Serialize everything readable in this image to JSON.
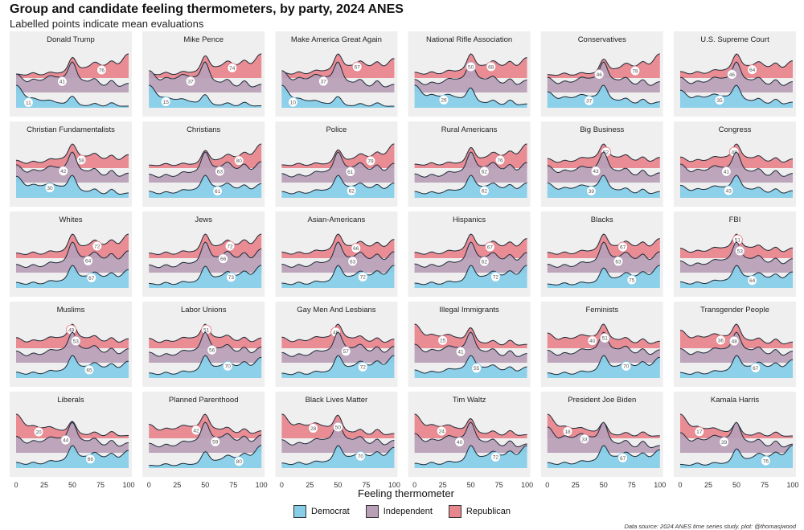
{
  "title": "Group and candidate feeling thermometers, by party, 2024 ANES",
  "subtitle": "Labelled points indicate mean evaluations",
  "source": "Data source: 2024 ANES time series study. plot: @thomasjwood",
  "colors": {
    "Democrat": "#87cde8",
    "Independent": "#b9a0b8",
    "Republican": "#e8868e",
    "panel_bg": "#efefef",
    "stroke": "#1c2b38"
  },
  "chart_data": {
    "type": "ridgeline",
    "xlabel": "Feeling thermometer",
    "xlim": [
      0,
      100
    ],
    "xticks": [
      "0",
      "25",
      "50",
      "75",
      "100"
    ],
    "series": [
      "Democrat",
      "Independent",
      "Republican"
    ],
    "legend": [
      {
        "name": "Democrat"
      },
      {
        "name": "Independent"
      },
      {
        "name": "Republican"
      }
    ],
    "panels": [
      {
        "name": "Donald Trump",
        "means": {
          "Democrat": 11,
          "Independent": 41,
          "Republican": 76
        }
      },
      {
        "name": "Mike Pence",
        "means": {
          "Democrat": 15,
          "Independent": 37,
          "Republican": 74
        }
      },
      {
        "name": "Make America Great Again",
        "means": {
          "Democrat": 10,
          "Independent": 37,
          "Republican": 67
        }
      },
      {
        "name": "National Rifle Association",
        "means": {
          "Democrat": 26,
          "Independent": 50,
          "Republican": 68
        }
      },
      {
        "name": "Conservatives",
        "means": {
          "Democrat": 37,
          "Independent": 46,
          "Republican": 78
        }
      },
      {
        "name": "U.S. Supreme Court",
        "means": {
          "Democrat": 35,
          "Independent": 46,
          "Republican": 64
        }
      },
      {
        "name": "Christian Fundamentalists",
        "means": {
          "Democrat": 30,
          "Independent": 42,
          "Republican": 58
        }
      },
      {
        "name": "Christians",
        "means": {
          "Democrat": 61,
          "Independent": 63,
          "Republican": 80
        }
      },
      {
        "name": "Police",
        "means": {
          "Democrat": 62,
          "Independent": 61,
          "Republican": 79
        }
      },
      {
        "name": "Rural Americans",
        "means": {
          "Democrat": 62,
          "Independent": 62,
          "Republican": 76
        }
      },
      {
        "name": "Big Business",
        "means": {
          "Democrat": 39,
          "Independent": 43,
          "Republican": 52
        }
      },
      {
        "name": "Congress",
        "means": {
          "Democrat": 43,
          "Independent": 41,
          "Republican": 48
        }
      },
      {
        "name": "Whites",
        "means": {
          "Democrat": 67,
          "Independent": 64,
          "Republican": 72
        }
      },
      {
        "name": "Jews",
        "means": {
          "Democrat": 73,
          "Independent": 66,
          "Republican": 72
        }
      },
      {
        "name": "Asian-Americans",
        "means": {
          "Democrat": 72,
          "Independent": 63,
          "Republican": 66
        }
      },
      {
        "name": "Hispanics",
        "means": {
          "Democrat": 72,
          "Independent": 62,
          "Republican": 67
        }
      },
      {
        "name": "Blacks",
        "means": {
          "Democrat": 75,
          "Independent": 63,
          "Republican": 67
        }
      },
      {
        "name": "FBI",
        "means": {
          "Democrat": 64,
          "Independent": 53,
          "Republican": 51
        }
      },
      {
        "name": "Muslims",
        "means": {
          "Democrat": 65,
          "Independent": 53,
          "Republican": 49
        }
      },
      {
        "name": "Labor Unions",
        "means": {
          "Democrat": 70,
          "Independent": 56,
          "Republican": 51
        }
      },
      {
        "name": "Gay Men And Lesbians",
        "means": {
          "Democrat": 72,
          "Independent": 57,
          "Republican": 48
        }
      },
      {
        "name": "Illegal Immigrants",
        "means": {
          "Democrat": 55,
          "Independent": 41,
          "Republican": 25
        }
      },
      {
        "name": "Feminists",
        "means": {
          "Democrat": 70,
          "Independent": 51,
          "Republican": 40
        }
      },
      {
        "name": "Transgender People",
        "means": {
          "Democrat": 67,
          "Independent": 48,
          "Republican": 36
        }
      },
      {
        "name": "Liberals",
        "means": {
          "Democrat": 66,
          "Independent": 44,
          "Republican": 20
        }
      },
      {
        "name": "Planned Parenthood",
        "means": {
          "Democrat": 80,
          "Independent": 59,
          "Republican": 42
        }
      },
      {
        "name": "Black Lives Matter",
        "means": {
          "Democrat": 70,
          "Independent": 50,
          "Republican": 28
        }
      },
      {
        "name": "Tim Waltz",
        "means": {
          "Democrat": 72,
          "Independent": 40,
          "Republican": 24
        }
      },
      {
        "name": "President Joe Biden",
        "means": {
          "Democrat": 67,
          "Independent": 33,
          "Republican": 18
        }
      },
      {
        "name": "Kamala Harris",
        "means": {
          "Democrat": 76,
          "Independent": 39,
          "Republican": 17
        }
      }
    ]
  }
}
